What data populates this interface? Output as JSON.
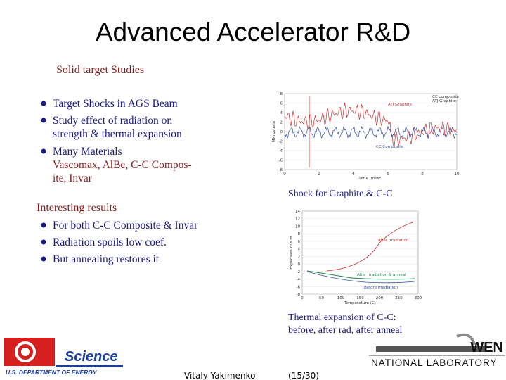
{
  "title": "Advanced Accelerator R&D",
  "sections": [
    {
      "heading": "Solid target Studies",
      "bullets": [
        [
          "Target Shocks in AGS Beam"
        ],
        [
          "Study effect of radiation on",
          "strength & thermal expansion"
        ],
        [
          "Many Materials",
          "Vascomax, AlBe, C-C Compos-",
          "ite, Invar"
        ]
      ]
    },
    {
      "heading": "Interesting results",
      "bullets": [
        [
          "For both C-C Composite & Invar"
        ],
        [
          "Radiation spoils low coef."
        ],
        [
          "But annealing restores it"
        ]
      ]
    }
  ],
  "charts": [
    {
      "ylabel": "Microstrain",
      "xlabel": "Time (msec)",
      "yticks": [
        8,
        6,
        4,
        2,
        0,
        -2,
        -4,
        -6,
        -8
      ],
      "xticks": [
        0,
        2,
        4,
        6,
        8,
        10
      ],
      "legend": [
        "CC composite",
        "ATJ Graphite"
      ],
      "curve_labels": [
        "ATJ Graphite",
        "CC Composite"
      ],
      "caption": [
        "Shock for Graphite & C-C"
      ]
    },
    {
      "ylabel": "Expansion ΔL/Lm",
      "xlabel": "Temperature (C)",
      "yticks": [
        14,
        12,
        10,
        8,
        6,
        4,
        2,
        0,
        -2,
        -4,
        -6,
        -8
      ],
      "xticks": [
        0,
        50,
        100,
        150,
        200,
        250,
        300
      ],
      "curve_labels": [
        "After Irradiation",
        "After irradiation & anneal",
        "Before irradiation"
      ],
      "caption": [
        "Thermal expansion of C-C:",
        "before, after rad, after anneal"
      ]
    }
  ],
  "footer": {
    "logo_left": "Science",
    "logo_left_sub": "U.S. DEPARTMENT OF ENERGY",
    "author": "Vitaly Yakimenko",
    "page": "(15/30)",
    "logo_right": "WEN",
    "logo_right_sub": "NATIONAL LABORATORY"
  }
}
